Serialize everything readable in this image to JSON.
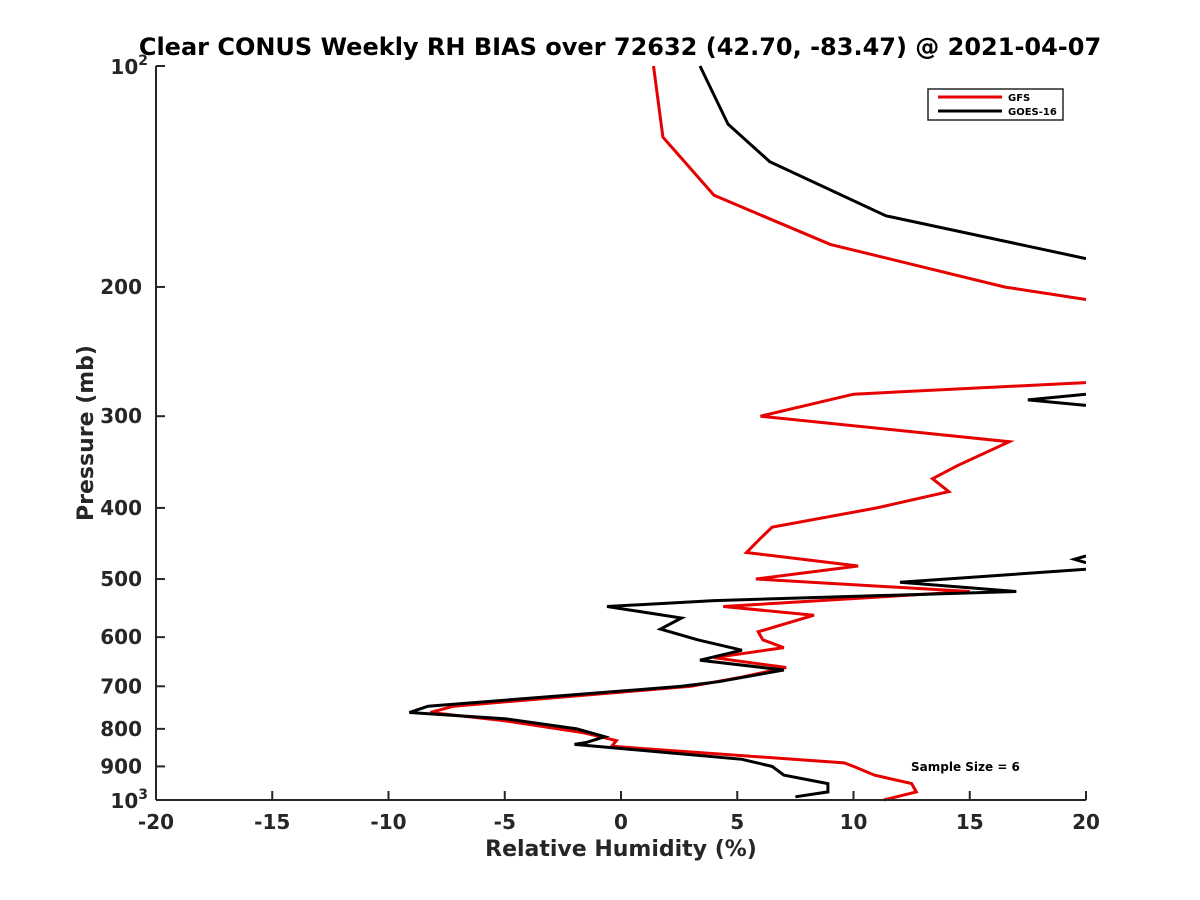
{
  "chart_data": {
    "type": "line",
    "title": "Clear CONUS Weekly RH BIAS over 72632 (42.70, -83.47) @ 2021-04-07",
    "xlabel": "Relative Humidity (%)",
    "ylabel": "Pressure (mb)",
    "xlim": [
      -20,
      20
    ],
    "ylim": [
      100,
      1000
    ],
    "y_scale": "log",
    "y_reversed": true,
    "grid": false,
    "legend_position": "top-right",
    "x_ticks": [
      "-20",
      "-15",
      "-10",
      "-5",
      "0",
      "5",
      "10",
      "15",
      "20"
    ],
    "y_ticks": [
      {
        "value": 100,
        "base": "10",
        "exp": "2"
      },
      {
        "value": 200,
        "label": "200"
      },
      {
        "value": 300,
        "label": "300"
      },
      {
        "value": 400,
        "label": "400"
      },
      {
        "value": 500,
        "label": "500"
      },
      {
        "value": 600,
        "label": "600"
      },
      {
        "value": 700,
        "label": "700"
      },
      {
        "value": 800,
        "label": "800"
      },
      {
        "value": 900,
        "label": "900"
      },
      {
        "value": 1000,
        "base": "10",
        "exp": "3"
      }
    ],
    "annotation": "Sample Size = 6",
    "series": [
      {
        "name": "GFS",
        "color": "#e60000",
        "points": [
          [
            1.4,
            100
          ],
          [
            1.8,
            125
          ],
          [
            4.0,
            150
          ],
          [
            9.0,
            175
          ],
          [
            16.5,
            200
          ],
          [
            20.0,
            208
          ],
          [
            null,
            null
          ],
          [
            20.0,
            270
          ],
          [
            10.0,
            280
          ],
          [
            6.0,
            300
          ],
          [
            16.7,
            325
          ],
          [
            14.5,
            350
          ],
          [
            13.4,
            365
          ],
          [
            14.1,
            380
          ],
          [
            11.0,
            400
          ],
          [
            6.5,
            425
          ],
          [
            6.0,
            440
          ],
          [
            5.4,
            460
          ],
          [
            10.2,
            480
          ],
          [
            5.8,
            500
          ],
          [
            15.0,
            520
          ],
          [
            4.4,
            545
          ],
          [
            8.3,
            560
          ],
          [
            5.9,
            590
          ],
          [
            6.1,
            605
          ],
          [
            7.0,
            620
          ],
          [
            4.0,
            640
          ],
          [
            7.1,
            660
          ],
          [
            5.2,
            680
          ],
          [
            3.0,
            700
          ],
          [
            -7.2,
            745
          ],
          [
            -8.2,
            760
          ],
          [
            -5.0,
            780
          ],
          [
            -1.6,
            810
          ],
          [
            -0.2,
            830
          ],
          [
            -0.4,
            845
          ],
          [
            9.6,
            890
          ],
          [
            10.0,
            900
          ],
          [
            10.9,
            925
          ],
          [
            12.5,
            950
          ],
          [
            12.7,
            975
          ],
          [
            11.3,
            1000
          ]
        ]
      },
      {
        "name": "GOES-16",
        "color": "#000000",
        "points": [
          [
            3.4,
            100
          ],
          [
            4.6,
            120
          ],
          [
            6.4,
            135
          ],
          [
            11.4,
            160
          ],
          [
            20.0,
            183
          ],
          [
            null,
            null
          ],
          [
            20.0,
            280
          ],
          [
            17.5,
            285
          ],
          [
            20.0,
            290
          ],
          [
            null,
            null
          ],
          [
            20.0,
            475
          ],
          [
            19.5,
            470
          ],
          [
            20.0,
            465
          ],
          [
            null,
            null
          ],
          [
            20.0,
            485
          ],
          [
            12.0,
            505
          ],
          [
            17.0,
            520
          ],
          [
            4.0,
            535
          ],
          [
            -0.6,
            545
          ],
          [
            2.6,
            565
          ],
          [
            1.7,
            585
          ],
          [
            3.3,
            605
          ],
          [
            5.2,
            625
          ],
          [
            3.4,
            645
          ],
          [
            7.0,
            665
          ],
          [
            4.2,
            690
          ],
          [
            2.6,
            700
          ],
          [
            -8.3,
            745
          ],
          [
            -9.1,
            760
          ],
          [
            -5.0,
            775
          ],
          [
            -1.9,
            800
          ],
          [
            -0.7,
            820
          ],
          [
            -1.5,
            835
          ],
          [
            -2.0,
            840
          ],
          [
            5.2,
            880
          ],
          [
            6.5,
            900
          ],
          [
            7.0,
            925
          ],
          [
            8.9,
            950
          ],
          [
            8.9,
            975
          ],
          [
            7.5,
            990
          ]
        ]
      }
    ]
  }
}
